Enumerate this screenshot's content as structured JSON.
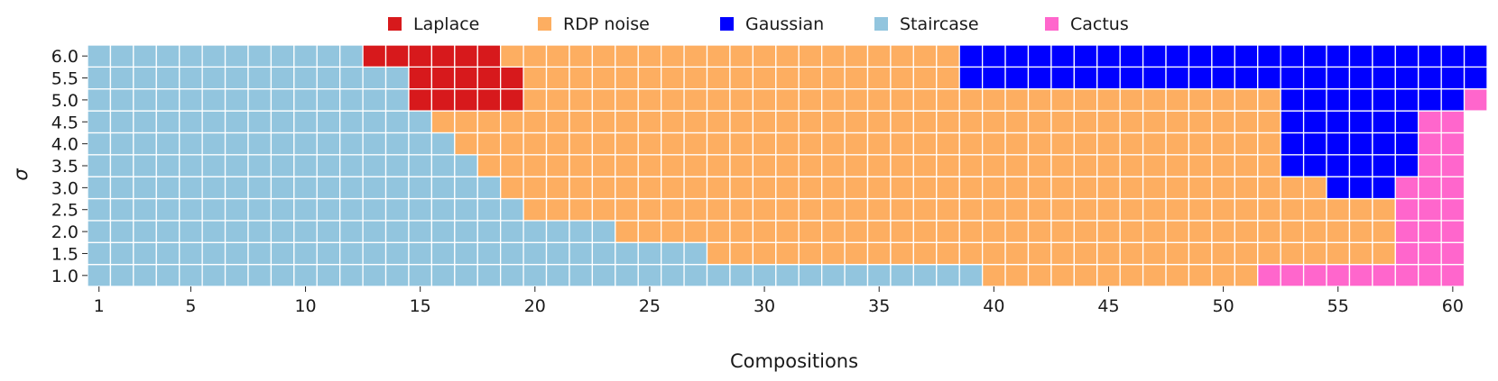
{
  "chart_data": {
    "type": "heatmap",
    "xlabel": "Compositions",
    "ylabel": "σ",
    "x_tick_labels": [
      "1",
      "5",
      "10",
      "15",
      "20",
      "25",
      "30",
      "35",
      "40",
      "45",
      "50",
      "55",
      "60"
    ],
    "x_tick_values": [
      1,
      5,
      10,
      15,
      20,
      25,
      30,
      35,
      40,
      45,
      50,
      55,
      60
    ],
    "x_range": [
      1,
      60
    ],
    "y_values": [
      "1.0",
      "1.5",
      "2.0",
      "2.5",
      "3.0",
      "3.5",
      "4.0",
      "4.5",
      "5.0",
      "5.5",
      "6.0"
    ],
    "legend_position": "top",
    "grid": false,
    "legend": [
      {
        "code": "L",
        "name": "Laplace",
        "color": "#d7191c"
      },
      {
        "code": "R",
        "name": "RDP noise",
        "color": "#fdae61"
      },
      {
        "code": "G",
        "name": "Gaussian",
        "color": "#0000ff"
      },
      {
        "code": "S",
        "name": "Staircase",
        "color": "#92c5de"
      },
      {
        "code": "C",
        "name": "Cactus",
        "color": "#ff66cc"
      }
    ],
    "rows": [
      {
        "sigma": "1.0",
        "runs": [
          [
            "S",
            1,
            39
          ],
          [
            "R",
            40,
            51
          ],
          [
            "C",
            52,
            60
          ]
        ]
      },
      {
        "sigma": "1.5",
        "runs": [
          [
            "S",
            1,
            27
          ],
          [
            "R",
            28,
            57
          ],
          [
            "C",
            58,
            60
          ]
        ]
      },
      {
        "sigma": "2.0",
        "runs": [
          [
            "S",
            1,
            23
          ],
          [
            "R",
            24,
            57
          ],
          [
            "C",
            58,
            60
          ]
        ]
      },
      {
        "sigma": "2.5",
        "runs": [
          [
            "S",
            1,
            19
          ],
          [
            "R",
            20,
            57
          ],
          [
            "C",
            58,
            60
          ]
        ]
      },
      {
        "sigma": "3.0",
        "runs": [
          [
            "S",
            1,
            18
          ],
          [
            "R",
            19,
            54
          ],
          [
            "G",
            55,
            57
          ],
          [
            "C",
            58,
            60
          ]
        ]
      },
      {
        "sigma": "3.5",
        "runs": [
          [
            "S",
            1,
            17
          ],
          [
            "R",
            18,
            52
          ],
          [
            "G",
            53,
            58
          ],
          [
            "C",
            59,
            60
          ]
        ]
      },
      {
        "sigma": "4.0",
        "runs": [
          [
            "S",
            1,
            16
          ],
          [
            "R",
            17,
            52
          ],
          [
            "G",
            53,
            58
          ],
          [
            "C",
            59,
            60
          ]
        ]
      },
      {
        "sigma": "4.5",
        "runs": [
          [
            "S",
            1,
            15
          ],
          [
            "R",
            16,
            52
          ],
          [
            "G",
            53,
            58
          ],
          [
            "C",
            59,
            60
          ]
        ]
      },
      {
        "sigma": "5.0",
        "runs": [
          [
            "S",
            1,
            14
          ],
          [
            "L",
            15,
            19
          ],
          [
            "R",
            20,
            52
          ],
          [
            "G",
            53,
            60
          ],
          [
            "C",
            61,
            61
          ]
        ]
      },
      {
        "sigma": "5.5",
        "runs": [
          [
            "S",
            1,
            14
          ],
          [
            "L",
            15,
            19
          ],
          [
            "R",
            20,
            38
          ],
          [
            "G",
            39,
            61
          ]
        ]
      },
      {
        "sigma": "6.0",
        "runs": [
          [
            "S",
            1,
            12
          ],
          [
            "L",
            13,
            18
          ],
          [
            "R",
            19,
            38
          ],
          [
            "G",
            39,
            61
          ]
        ]
      }
    ]
  }
}
